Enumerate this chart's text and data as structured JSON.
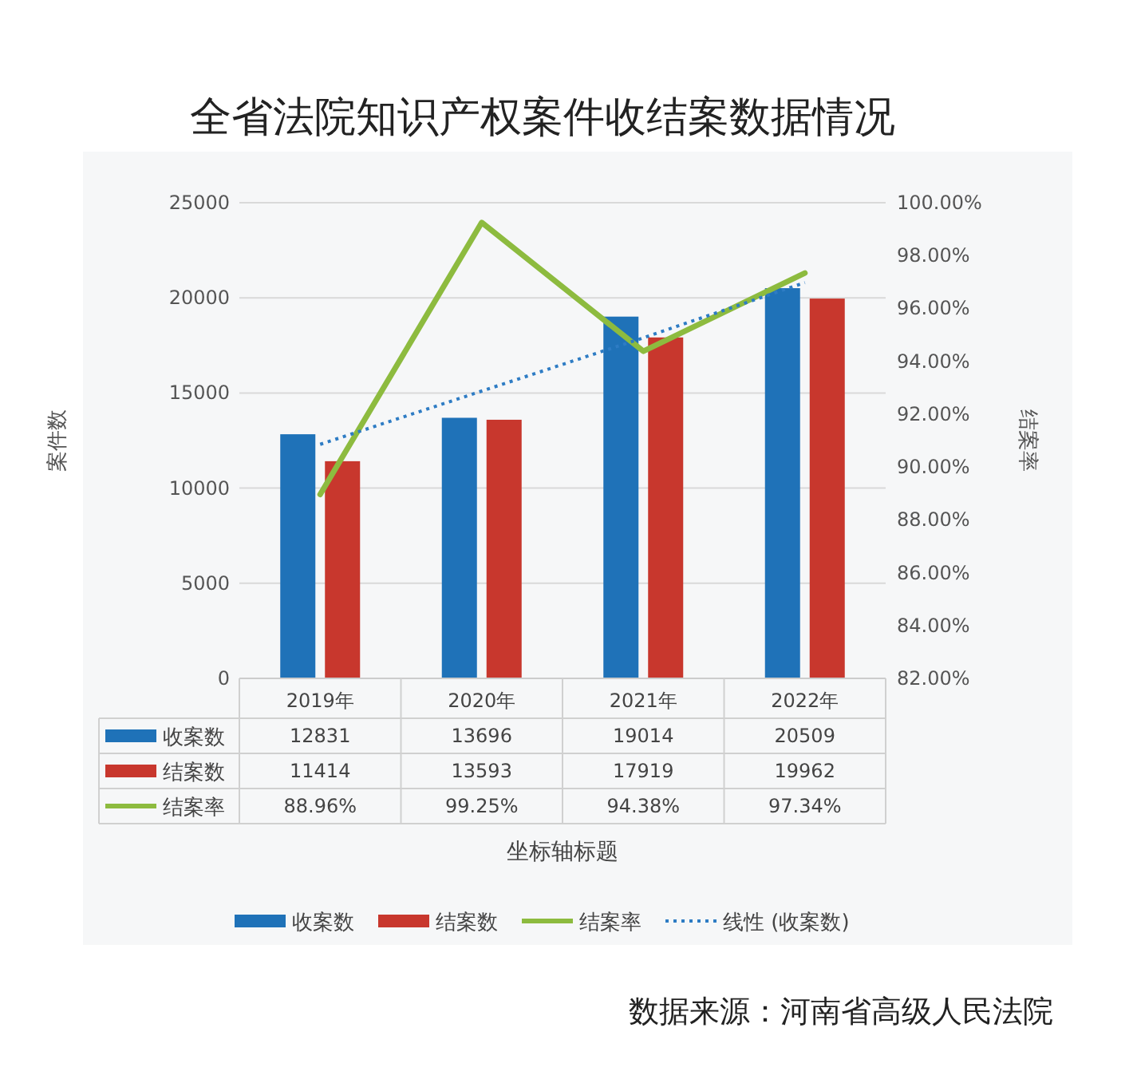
{
  "chart_data": {
    "type": "bar",
    "title": "全省法院知识产权案件收结案数据情况",
    "ylabel": "案件数",
    "y2label": "结案率",
    "categories": [
      "2019年",
      "2020年",
      "2021年",
      "2022年"
    ],
    "series": [
      {
        "name": "收案数",
        "color": "#1f72b8",
        "values": [
          12831,
          13696,
          19014,
          20509
        ],
        "value_labels": [
          "12831",
          "13696",
          "19014",
          "20509"
        ]
      },
      {
        "name": "结案数",
        "color": "#c8372d",
        "values": [
          11414,
          13593,
          17919,
          19962
        ],
        "value_labels": [
          "11414",
          "13593",
          "17919",
          "19962"
        ]
      },
      {
        "name": "结案率",
        "type": "line",
        "axis": "y2",
        "color": "#8dbb3f",
        "line_style": "solid",
        "values": [
          88.96,
          99.25,
          94.38,
          97.34
        ],
        "value_labels": [
          "88.96%",
          "99.25%",
          "94.38%",
          "97.34%"
        ]
      },
      {
        "name": "线性 (收案数)",
        "type": "line",
        "color": "#2e7cc4",
        "line_style": "dotted",
        "values": [
          12300,
          15100,
          17900,
          20800
        ]
      }
    ],
    "ylim": [
      0,
      25000
    ],
    "yticks": [
      0,
      5000,
      10000,
      15000,
      20000,
      25000
    ],
    "y2lim": [
      82,
      100
    ],
    "y2ticks": [
      {
        "value": 82,
        "label": "82.00%"
      },
      {
        "value": 84,
        "label": "84.00%"
      },
      {
        "value": 86,
        "label": "86.00%"
      },
      {
        "value": 88,
        "label": "88.00%"
      },
      {
        "value": 90,
        "label": "90.00%"
      },
      {
        "value": 92,
        "label": "92.00%"
      },
      {
        "value": 94,
        "label": "94.00%"
      },
      {
        "value": 96,
        "label": "96.00%"
      },
      {
        "value": 98,
        "label": "98.00%"
      },
      {
        "value": 100,
        "label": "100.00%"
      }
    ],
    "grid": "y",
    "legend": "bottom",
    "annotations": [
      "坐标轴标题",
      "数据来源：河南省高级人民法院"
    ]
  }
}
